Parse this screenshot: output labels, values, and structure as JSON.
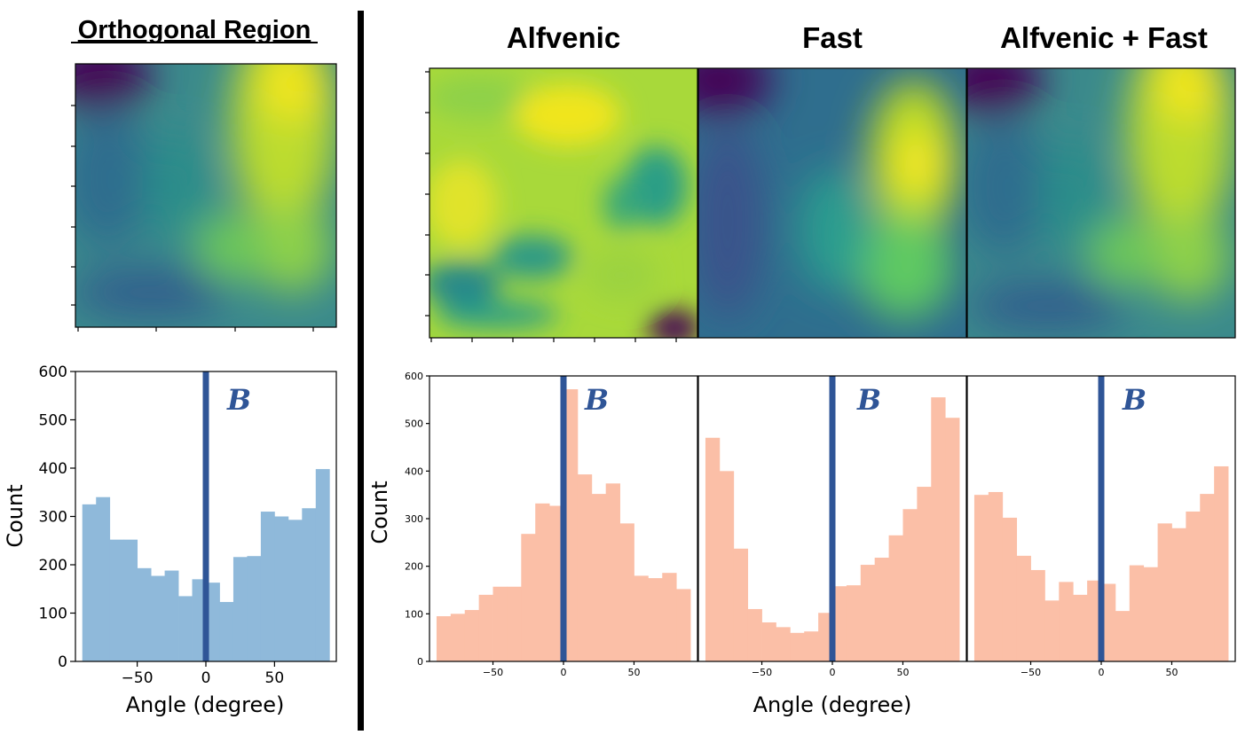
{
  "colors": {
    "orth_bar": "#8fb9da",
    "right_bar": "#fbbfa7",
    "b_line": "#2f5597",
    "divider": "#000000"
  },
  "titles": {
    "orthogonal": "Orthogonal Region",
    "alfvenic": "Alfvenic",
    "fast": "Fast",
    "combined": "Alfvenic + Fast"
  },
  "b_label": "B",
  "chart_data": [
    {
      "type": "bar",
      "name": "orthogonal-histogram",
      "title": "Orthogonal Region",
      "xlabel": "Angle (degree)",
      "ylabel": "Count",
      "xlim": [
        -95,
        95
      ],
      "ylim": [
        0,
        600
      ],
      "xticks": [
        -50,
        0,
        50
      ],
      "xtick_labels": [
        "−50",
        "0",
        "50"
      ],
      "yticks": [
        0,
        100,
        200,
        300,
        400,
        500,
        600
      ],
      "b_angle": 0,
      "bin_edges": [
        -90,
        -80,
        -70,
        -60,
        -50,
        -40,
        -30,
        -20,
        -10,
        0,
        10,
        20,
        30,
        40,
        50,
        60,
        70,
        80,
        90
      ],
      "values": [
        325,
        340,
        252,
        252,
        193,
        177,
        188,
        135,
        170,
        163,
        123,
        216,
        218,
        310,
        300,
        293,
        317,
        398
      ]
    },
    {
      "type": "bar",
      "name": "alfvenic-histogram",
      "title": "Alfvenic",
      "xlabel": "Angle (degree)",
      "ylabel": "Count",
      "xlim": [
        -95,
        95
      ],
      "ylim": [
        0,
        600
      ],
      "xticks": [
        -50,
        0,
        50
      ],
      "xtick_labels": [
        "−50",
        "0",
        "50"
      ],
      "yticks": [
        0,
        100,
        200,
        300,
        400,
        500,
        600
      ],
      "b_angle": 0,
      "bin_edges": [
        -90,
        -80,
        -70,
        -60,
        -50,
        -40,
        -30,
        -20,
        -10,
        0,
        10,
        20,
        30,
        40,
        50,
        60,
        70,
        80,
        90
      ],
      "values": [
        95,
        100,
        108,
        140,
        157,
        157,
        268,
        332,
        327,
        572,
        393,
        352,
        374,
        290,
        180,
        175,
        186,
        152
      ]
    },
    {
      "type": "bar",
      "name": "fast-histogram",
      "title": "Fast",
      "xlabel": "Angle (degree)",
      "ylabel": "Count",
      "xlim": [
        -95,
        95
      ],
      "ylim": [
        0,
        600
      ],
      "xticks": [
        -50,
        0,
        50
      ],
      "xtick_labels": [
        "−50",
        "0",
        "50"
      ],
      "yticks": [
        0,
        100,
        200,
        300,
        400,
        500,
        600
      ],
      "b_angle": 0,
      "bin_edges": [
        -90,
        -80,
        -70,
        -60,
        -50,
        -40,
        -30,
        -20,
        -10,
        0,
        10,
        20,
        30,
        40,
        50,
        60,
        70,
        80,
        90
      ],
      "values": [
        470,
        400,
        237,
        110,
        82,
        72,
        60,
        63,
        102,
        158,
        160,
        203,
        218,
        265,
        320,
        367,
        555,
        512
      ]
    },
    {
      "type": "bar",
      "name": "combined-histogram",
      "title": "Alfvenic + Fast",
      "xlabel": "Angle (degree)",
      "ylabel": "Count",
      "xlim": [
        -95,
        95
      ],
      "ylim": [
        0,
        600
      ],
      "xticks": [
        -50,
        0,
        50
      ],
      "xtick_labels": [
        "−50",
        "0",
        "50"
      ],
      "yticks": [
        0,
        100,
        200,
        300,
        400,
        500,
        600
      ],
      "b_angle": 0,
      "bin_edges": [
        -90,
        -80,
        -70,
        -60,
        -50,
        -40,
        -30,
        -20,
        -10,
        0,
        10,
        20,
        30,
        40,
        50,
        60,
        70,
        80,
        90
      ],
      "values": [
        350,
        356,
        302,
        222,
        192,
        128,
        167,
        140,
        170,
        163,
        106,
        202,
        198,
        290,
        280,
        315,
        352,
        410
      ]
    }
  ],
  "axis_labels": {
    "count": "Count",
    "angle": "Angle (degree)"
  }
}
